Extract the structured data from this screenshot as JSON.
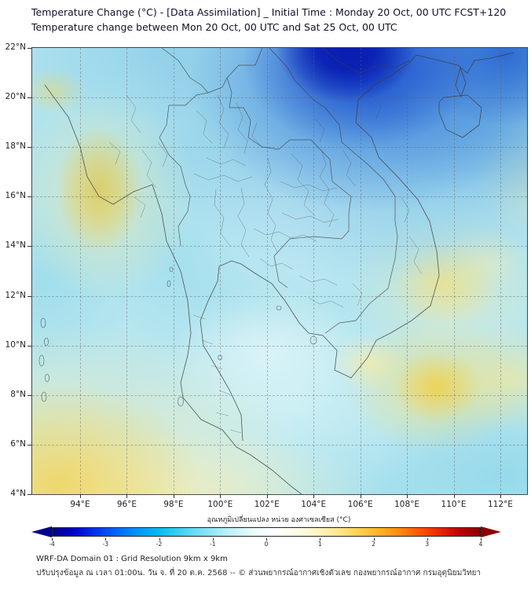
{
  "header": {
    "title_line1": "Temperature Change (°C) - [Data Assimilation] _ Initial Time : Monday 20 Oct, 00 UTC FCST+120",
    "title_line2": "Temperature change between Mon 20 Oct, 00 UTC and Sat 25 Oct, 00 UTC"
  },
  "map": {
    "x_ticks": [
      "94°E",
      "96°E",
      "98°E",
      "100°E",
      "102°E",
      "104°E",
      "106°E",
      "108°E",
      "110°E",
      "112°E"
    ],
    "y_ticks": [
      "22°N",
      "20°N",
      "18°N",
      "16°N",
      "14°N",
      "12°N",
      "10°N",
      "8°N",
      "6°N",
      "4°N"
    ]
  },
  "colorbar": {
    "label": "อุณหภูมิเปลี่ยนแปลง หน่วย องศาเซลเซียส (°C)",
    "ticks": [
      "-4",
      "-3",
      "-2",
      "-1",
      "0",
      "1",
      "2",
      "3",
      "4"
    ],
    "left_arrow_color": "#00008b",
    "right_arrow_color": "#8b0000",
    "gradient_stops": [
      "#00008b",
      "#0000c8",
      "#0030e8",
      "#0060f8",
      "#0090f8",
      "#00b4f0",
      "#30ccf0",
      "#68dcf4",
      "#9ceaf8",
      "#c8f4fa",
      "#eefcfe",
      "#ffffff",
      "#fffce8",
      "#fff6c0",
      "#ffe890",
      "#ffd250",
      "#ffb428",
      "#ff8c10",
      "#ff5500",
      "#e82800",
      "#c00000",
      "#8b0000"
    ]
  },
  "footer": {
    "line1": "WRF-DA Domain 01 : Grid Resolution 9km x 9km",
    "line2": "ปรับปรุงข้อมูล ณ เวลา 01:00น. วัน จ. ที่ 20 ต.ค. 2568 -- © ส่วนพยากรณ์อากาศเชิงตัวเลข กองพยากรณ์อากาศ กรมอุตุนิยมวิทยา"
  },
  "chart_data": {
    "type": "heatmap",
    "title": "Temperature Change (°C) - [Data Assimilation] _ Initial Time : Monday 20 Oct, 00 UTC FCST+120",
    "subtitle": "Temperature change between Mon 20 Oct, 00 UTC and Sat 25 Oct, 00 UTC",
    "variable": "temperature_change",
    "units": "°C",
    "xlabel_ticks_deg_east": [
      94,
      96,
      98,
      100,
      102,
      104,
      106,
      108,
      110,
      112
    ],
    "ylabel_ticks_deg_north": [
      22,
      20,
      18,
      16,
      14,
      12,
      10,
      8,
      6,
      4
    ],
    "lon_range_deg_east": [
      92,
      113
    ],
    "lat_range_deg_north": [
      4,
      22
    ],
    "color_scale_range_c": [
      -4,
      4
    ],
    "colorbar_tick_values": [
      -4,
      -3,
      -2,
      -1,
      0,
      1,
      2,
      3,
      4
    ],
    "grid": true,
    "notable_regions": [
      {
        "area": "Northern Vietnam, ~104-107E / 20-22N",
        "estimated_change_c": -4
      },
      {
        "area": "Top-right corner, ~110-112E / 21-22N",
        "estimated_change_c": -3
      },
      {
        "area": "Most of Thailand, Laos, Cambodia (light cyan field)",
        "estimated_change_c": -0.5
      },
      {
        "area": "Myanmar coast, ~94-96E / 16-17N",
        "estimated_change_c": 1.5
      },
      {
        "area": "Southwest corner (Andaman Sea), ~92-97E / 4-7N",
        "estimated_change_c": 1
      },
      {
        "area": "South China Sea, ~109-110E / 8-9N",
        "estimated_change_c": 1.5
      },
      {
        "area": "Coastal Vietnam, ~109-110E / 12-13N",
        "estimated_change_c": 1
      }
    ]
  }
}
